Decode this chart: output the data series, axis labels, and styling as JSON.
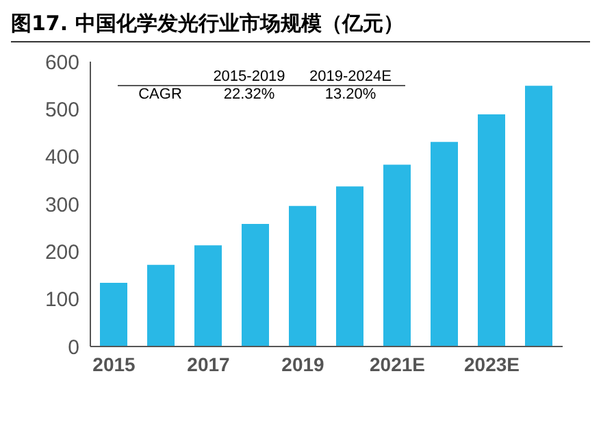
{
  "chart_data": {
    "type": "bar",
    "title": "图17. 中国化学发光行业市场规模（亿元）",
    "categories": [
      "2015",
      null,
      "2017",
      null,
      "2019",
      null,
      "2021E",
      null,
      "2023E",
      null
    ],
    "values": [
      134,
      172,
      213,
      258,
      296,
      337,
      383,
      431,
      489,
      549
    ],
    "color": "#29b8e6",
    "ylim": [
      0,
      600
    ],
    "yticks": [
      0,
      100,
      200,
      300,
      400,
      500,
      600
    ],
    "grid": false,
    "annotations": [
      "2015-2019",
      "2019-2024E",
      "CAGR",
      "22.32%",
      "13.20%"
    ]
  }
}
